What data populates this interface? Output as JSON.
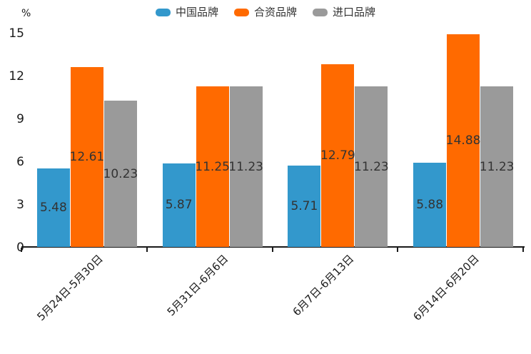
{
  "chart_data": {
    "type": "bar",
    "title": "",
    "ylabel": "%",
    "xlabel": "",
    "grid": false,
    "legend_position": "top",
    "ylim": [
      0,
      15
    ],
    "y_ticks": [
      0,
      3,
      6,
      9,
      12,
      15
    ],
    "categories": [
      "5月24日-5月30日",
      "5月31日-6月6日",
      "6月7日-6月13日",
      "6月14日-6月20日"
    ],
    "series": [
      {
        "name": "中国品牌",
        "color": "#3398CC",
        "values": [
          5.48,
          5.87,
          5.71,
          5.88
        ]
      },
      {
        "name": "合资品牌",
        "color": "#FF6A00",
        "values": [
          12.61,
          11.25,
          12.79,
          14.88
        ]
      },
      {
        "name": "进口品牌",
        "color": "#9A9A9A",
        "values": [
          10.23,
          11.23,
          11.23,
          11.23
        ]
      }
    ],
    "value_label_color": "#333333",
    "axis_color": "#1a1a1a",
    "background_color": "#ffffff"
  }
}
